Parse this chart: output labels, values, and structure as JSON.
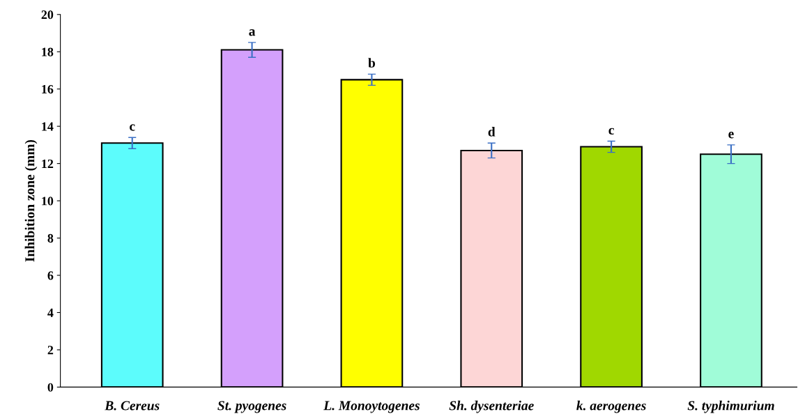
{
  "chart_data": {
    "type": "bar",
    "ylabel": "Inhibition zone (mm)",
    "categories": [
      "B. Cereus",
      "St. pyogenes",
      "L. Monoytogenes",
      "Sh. dysenteriae",
      "k. aerogenes",
      "S. typhimurium"
    ],
    "values": [
      13.1,
      18.1,
      16.5,
      12.7,
      12.9,
      12.5
    ],
    "errors": [
      0.3,
      0.4,
      0.3,
      0.4,
      0.3,
      0.5
    ],
    "colors": [
      "#5cfcfc",
      "#d4a0fc",
      "#ffff00",
      "#fdd6d6",
      "#a0d800",
      "#a0fcd8"
    ],
    "ylim": [
      0,
      20
    ],
    "yticks": [
      0,
      2,
      4,
      6,
      8,
      10,
      12,
      14,
      16,
      18,
      20
    ],
    "grid": false,
    "annotations": [
      "c",
      "a",
      "b",
      "d",
      "c",
      "e"
    ]
  }
}
